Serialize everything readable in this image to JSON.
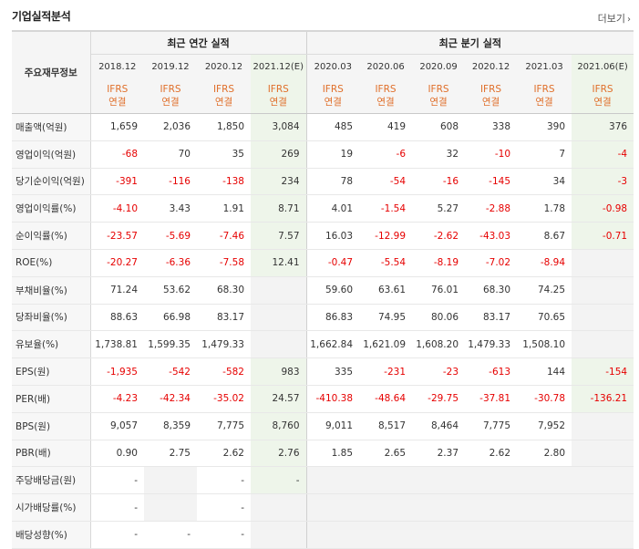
{
  "header": {
    "title": "기업실적분석",
    "more_label": "더보기"
  },
  "table": {
    "label_head": "주요재무정보",
    "group_annual": "최근 연간 실적",
    "group_quarter": "최근 분기 실적",
    "periods": [
      "2018.12",
      "2019.12",
      "2020.12",
      "2021.12(E)",
      "2020.03",
      "2020.06",
      "2020.09",
      "2020.12",
      "2021.03",
      "2021.06(E)"
    ],
    "ifrs_line1": "IFRS",
    "ifrs_line2": "연결",
    "rows": [
      {
        "label": "매출액(억원)",
        "values": [
          "1,659",
          "2,036",
          "1,850",
          "3,084",
          "485",
          "419",
          "608",
          "338",
          "390",
          "376"
        ]
      },
      {
        "label": "영업이익(억원)",
        "values": [
          "-68",
          "70",
          "35",
          "269",
          "19",
          "-6",
          "32",
          "-10",
          "7",
          "-4"
        ]
      },
      {
        "label": "당기순이익(억원)",
        "values": [
          "-391",
          "-116",
          "-138",
          "234",
          "78",
          "-54",
          "-16",
          "-145",
          "34",
          "-3"
        ]
      },
      {
        "label": "영업이익률(%)",
        "values": [
          "-4.10",
          "3.43",
          "1.91",
          "8.71",
          "4.01",
          "-1.54",
          "5.27",
          "-2.88",
          "1.78",
          "-0.98"
        ]
      },
      {
        "label": "순이익률(%)",
        "values": [
          "-23.57",
          "-5.69",
          "-7.46",
          "7.57",
          "16.03",
          "-12.99",
          "-2.62",
          "-43.03",
          "8.67",
          "-0.71"
        ]
      },
      {
        "label": "ROE(%)",
        "values": [
          "-20.27",
          "-6.36",
          "-7.58",
          "12.41",
          "-0.47",
          "-5.54",
          "-8.19",
          "-7.02",
          "-8.94",
          ""
        ]
      },
      {
        "label": "부채비율(%)",
        "values": [
          "71.24",
          "53.62",
          "68.30",
          "",
          "59.60",
          "63.61",
          "76.01",
          "68.30",
          "74.25",
          ""
        ]
      },
      {
        "label": "당좌비율(%)",
        "values": [
          "88.63",
          "66.98",
          "83.17",
          "",
          "86.83",
          "74.95",
          "80.06",
          "83.17",
          "70.65",
          ""
        ]
      },
      {
        "label": "유보율(%)",
        "values": [
          "1,738.81",
          "1,599.35",
          "1,479.33",
          "",
          "1,662.84",
          "1,621.09",
          "1,608.20",
          "1,479.33",
          "1,508.10",
          ""
        ]
      },
      {
        "label": "EPS(원)",
        "values": [
          "-1,935",
          "-542",
          "-582",
          "983",
          "335",
          "-231",
          "-23",
          "-613",
          "144",
          "-154"
        ]
      },
      {
        "label": "PER(배)",
        "values": [
          "-4.23",
          "-42.34",
          "-35.02",
          "24.57",
          "-410.38",
          "-48.64",
          "-29.75",
          "-37.81",
          "-30.78",
          "-136.21"
        ]
      },
      {
        "label": "BPS(원)",
        "values": [
          "9,057",
          "8,359",
          "7,775",
          "8,760",
          "9,011",
          "8,517",
          "8,464",
          "7,775",
          "7,952",
          ""
        ]
      },
      {
        "label": "PBR(배)",
        "values": [
          "0.90",
          "2.75",
          "2.62",
          "2.76",
          "1.85",
          "2.65",
          "2.37",
          "2.62",
          "2.80",
          ""
        ]
      },
      {
        "label": "주당배당금(원)",
        "values": [
          "-",
          "",
          "-",
          "-",
          "",
          "",
          "",
          "",
          "",
          ""
        ]
      },
      {
        "label": "시가배당률(%)",
        "values": [
          "-",
          "",
          "-",
          "",
          "",
          "",
          "",
          "",
          "",
          ""
        ]
      },
      {
        "label": "배당성향(%)",
        "values": [
          "-",
          "-",
          "-",
          "",
          "",
          "",
          "",
          "",
          "",
          ""
        ]
      }
    ]
  }
}
